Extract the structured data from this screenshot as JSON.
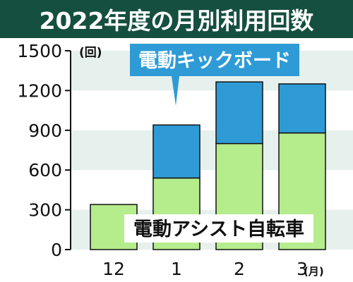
{
  "title": "2022年度の月別利用回数",
  "colors": {
    "title_bg": "#154f3f",
    "band": "#e6f0ec",
    "scooter": "#2e9bd6",
    "bicycle": "#b5ec8c",
    "legend_scooter_bg": "#2e9bd6",
    "legend_bicycle_bg": "#ffffff"
  },
  "chart_data": {
    "type": "bar",
    "stacked": true,
    "categories": [
      "12",
      "1",
      "2",
      "3"
    ],
    "x_unit": "(月)",
    "y_unit": "(回)",
    "ylim": [
      0,
      1500
    ],
    "yticks": [
      0,
      300,
      600,
      900,
      1200,
      1500
    ],
    "series": [
      {
        "name": "電動アシスト自転車",
        "values": [
          340,
          540,
          800,
          880
        ]
      },
      {
        "name": "電動キックボード",
        "values": [
          0,
          400,
          465,
          370
        ]
      }
    ]
  }
}
